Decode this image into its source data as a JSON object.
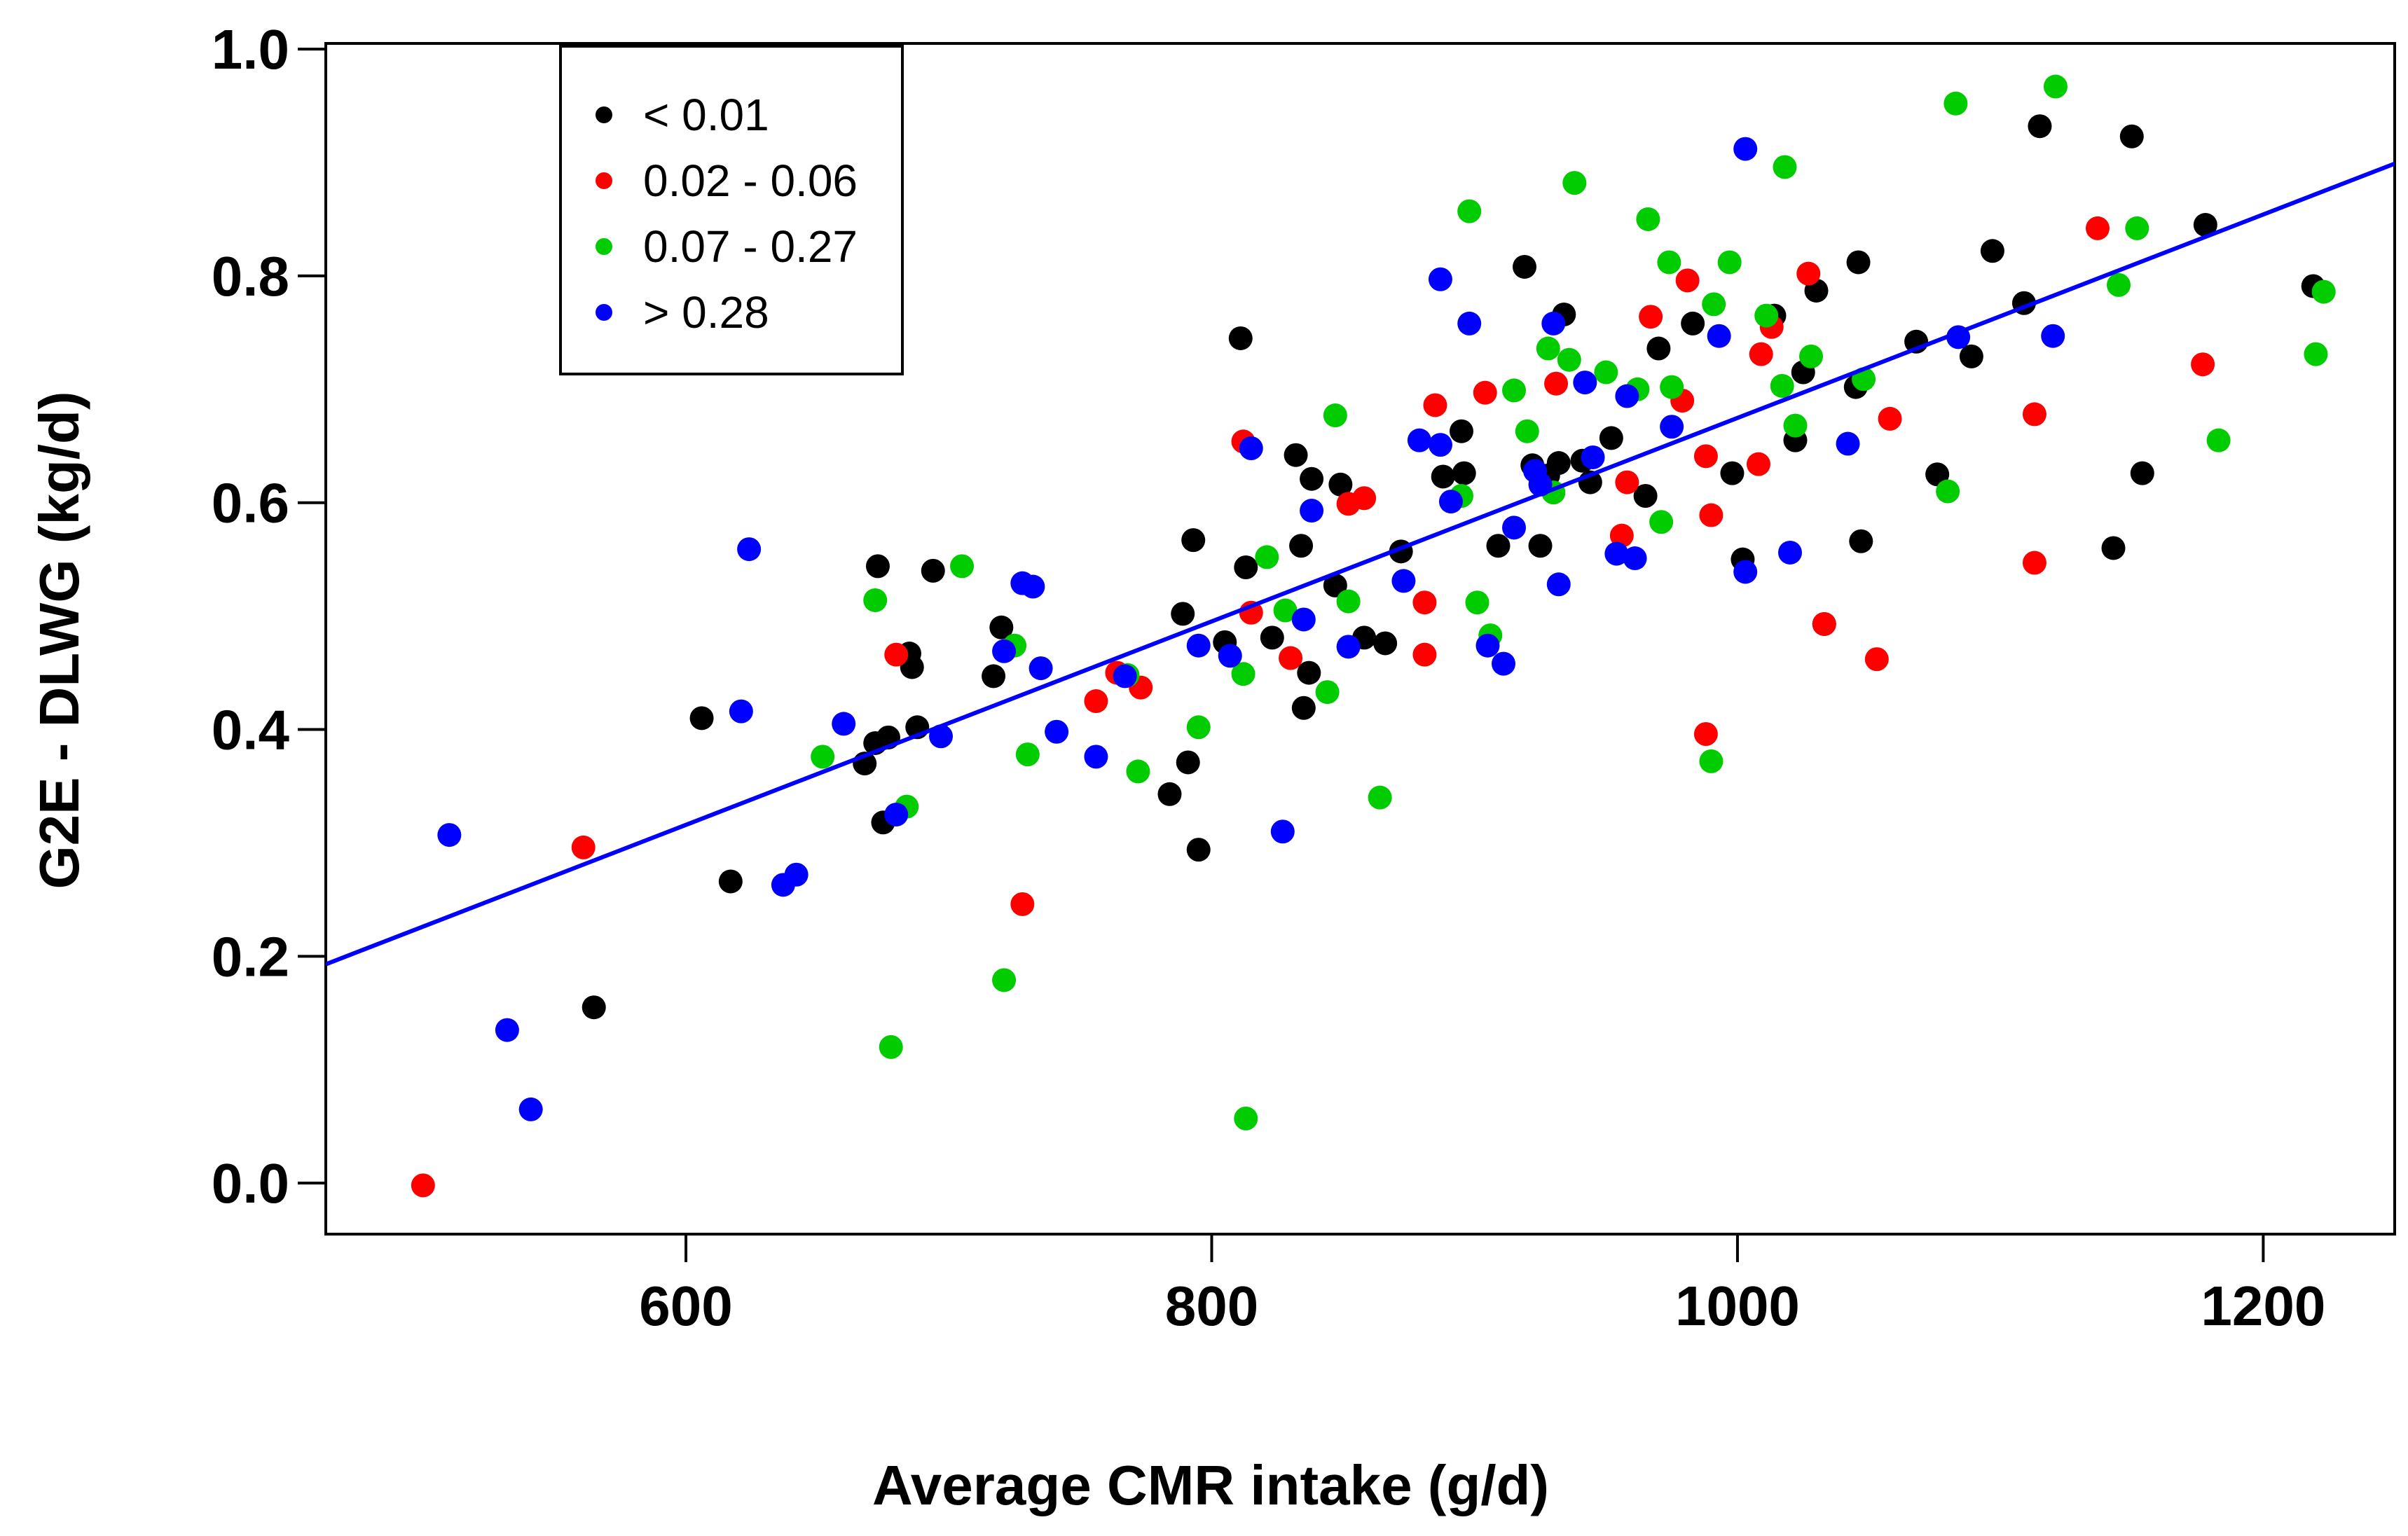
{
  "chart_data": {
    "type": "scatter",
    "title": "",
    "xlabel": "Average  CMR intake (g/d)",
    "ylabel": "G2E - DLWG (kg/d)",
    "xlim": [
      463,
      1250
    ],
    "ylim": [
      -0.045,
      1.005
    ],
    "xticks": [
      600,
      800,
      1000,
      1200
    ],
    "yticks": [
      0.0,
      0.2,
      0.4,
      0.6,
      0.8,
      1.0
    ],
    "xtick_labels": [
      "600",
      "800",
      "1000",
      "1200"
    ],
    "ytick_labels": [
      "0.0",
      "0.2",
      "0.4",
      "0.6",
      "0.8",
      "1.0"
    ],
    "grid": false,
    "legend_position": "top-left",
    "regression_line": {
      "color": "#0000ff",
      "x": [
        463,
        1250
      ],
      "y": [
        0.193,
        0.899
      ]
    },
    "series": [
      {
        "name": "< 0.01",
        "color": "#000000",
        "points": [
          [
            565,
            0.155
          ],
          [
            606,
            0.41
          ],
          [
            617,
            0.266
          ],
          [
            668,
            0.37
          ],
          [
            672,
            0.388
          ],
          [
            673,
            0.544
          ],
          [
            675,
            0.318
          ],
          [
            677,
            0.393
          ],
          [
            685,
            0.467
          ],
          [
            686,
            0.455
          ],
          [
            688,
            0.402
          ],
          [
            694,
            0.54
          ],
          [
            717,
            0.447
          ],
          [
            720,
            0.49
          ],
          [
            784,
            0.343
          ],
          [
            789,
            0.502
          ],
          [
            791,
            0.371
          ],
          [
            793,
            0.567
          ],
          [
            795,
            0.294
          ],
          [
            805,
            0.477
          ],
          [
            811,
            0.745
          ],
          [
            813,
            0.543
          ],
          [
            823,
            0.481
          ],
          [
            832,
            0.642
          ],
          [
            834,
            0.562
          ],
          [
            835,
            0.419
          ],
          [
            837,
            0.45
          ],
          [
            838,
            0.621
          ],
          [
            847,
            0.527
          ],
          [
            849,
            0.616
          ],
          [
            858,
            0.481
          ],
          [
            866,
            0.476
          ],
          [
            872,
            0.557
          ],
          [
            888,
            0.623
          ],
          [
            895,
            0.663
          ],
          [
            896,
            0.626
          ],
          [
            909,
            0.562
          ],
          [
            919,
            0.808
          ],
          [
            922,
            0.633
          ],
          [
            925,
            0.562
          ],
          [
            928,
            0.624
          ],
          [
            932,
            0.635
          ],
          [
            934,
            0.766
          ],
          [
            941,
            0.637
          ],
          [
            944,
            0.618
          ],
          [
            952,
            0.657
          ],
          [
            965,
            0.606
          ],
          [
            970,
            0.736
          ],
          [
            983,
            0.758
          ],
          [
            998,
            0.626
          ],
          [
            1002,
            0.55
          ],
          [
            1014,
            0.765
          ],
          [
            1022,
            0.655
          ],
          [
            1025,
            0.715
          ],
          [
            1030,
            0.787
          ],
          [
            1033,
            0.493
          ],
          [
            1045,
            0.702
          ],
          [
            1046,
            0.812
          ],
          [
            1047,
            0.566
          ],
          [
            1068,
            0.742
          ],
          [
            1076,
            0.625
          ],
          [
            1089,
            0.729
          ],
          [
            1097,
            0.822
          ],
          [
            1109,
            0.776
          ],
          [
            1115,
            0.932
          ],
          [
            1143,
            0.56
          ],
          [
            1150,
            0.923
          ],
          [
            1154,
            0.626
          ],
          [
            1178,
            0.845
          ],
          [
            1219,
            0.791
          ]
        ]
      },
      {
        "name": "0.02 - 0.06",
        "color": "#ff0000",
        "points": [
          [
            500,
            -0.002
          ],
          [
            561,
            0.296
          ],
          [
            680,
            0.466
          ],
          [
            728,
            0.246
          ],
          [
            756,
            0.425
          ],
          [
            764,
            0.45
          ],
          [
            773,
            0.437
          ],
          [
            812,
            0.654
          ],
          [
            815,
            0.503
          ],
          [
            830,
            0.463
          ],
          [
            852,
            0.599
          ],
          [
            858,
            0.604
          ],
          [
            881,
            0.512
          ],
          [
            885,
            0.686
          ],
          [
            881,
            0.466
          ],
          [
            904,
            0.697
          ],
          [
            931,
            0.705
          ],
          [
            956,
            0.571
          ],
          [
            958,
            0.618
          ],
          [
            967,
            0.764
          ],
          [
            979,
            0.69
          ],
          [
            981,
            0.796
          ],
          [
            988,
            0.641
          ],
          [
            990,
            0.589
          ],
          [
            988,
            0.396
          ],
          [
            1008,
            0.634
          ],
          [
            1009,
            0.731
          ],
          [
            1013,
            0.755
          ],
          [
            1027,
            0.802
          ],
          [
            1033,
            0.493
          ],
          [
            1053,
            0.462
          ],
          [
            1058,
            0.674
          ],
          [
            1113,
            0.678
          ],
          [
            1113,
            0.547
          ],
          [
            1137,
            0.842
          ],
          [
            1177,
            0.722
          ]
        ]
      },
      {
        "name": "0.07 - 0.27",
        "color": "#00cc00",
        "points": [
          [
            652,
            0.376
          ],
          [
            672,
            0.514
          ],
          [
            678,
            0.12
          ],
          [
            684,
            0.332
          ],
          [
            705,
            0.544
          ],
          [
            721,
            0.179
          ],
          [
            725,
            0.474
          ],
          [
            730,
            0.378
          ],
          [
            768,
            0.448
          ],
          [
            772,
            0.363
          ],
          [
            795,
            0.402
          ],
          [
            813,
            0.057
          ],
          [
            812,
            0.449
          ],
          [
            821,
            0.552
          ],
          [
            828,
            0.505
          ],
          [
            844,
            0.433
          ],
          [
            847,
            0.677
          ],
          [
            852,
            0.513
          ],
          [
            864,
            0.34
          ],
          [
            895,
            0.606
          ],
          [
            898,
            0.857
          ],
          [
            901,
            0.512
          ],
          [
            906,
            0.483
          ],
          [
            915,
            0.699
          ],
          [
            920,
            0.663
          ],
          [
            928,
            0.736
          ],
          [
            930,
            0.609
          ],
          [
            936,
            0.726
          ],
          [
            938,
            0.882
          ],
          [
            950,
            0.715
          ],
          [
            962,
            0.7
          ],
          [
            966,
            0.85
          ],
          [
            971,
            0.583
          ],
          [
            974,
            0.812
          ],
          [
            975,
            0.702
          ],
          [
            991,
            0.775
          ],
          [
            990,
            0.372
          ],
          [
            997,
            0.812
          ],
          [
            1011,
            0.765
          ],
          [
            1018,
            0.896
          ],
          [
            1017,
            0.703
          ],
          [
            1022,
            0.668
          ],
          [
            1028,
            0.729
          ],
          [
            1048,
            0.709
          ],
          [
            1080,
            0.61
          ],
          [
            1083,
            0.952
          ],
          [
            1121,
            0.967
          ],
          [
            1145,
            0.792
          ],
          [
            1152,
            0.842
          ],
          [
            1183,
            0.655
          ],
          [
            1220,
            0.731
          ],
          [
            1223,
            0.786
          ]
        ]
      },
      {
        "name": "> 0.28",
        "color": "#0000ff",
        "points": [
          [
            510,
            0.307
          ],
          [
            532,
            0.135
          ],
          [
            541,
            0.065
          ],
          [
            621,
            0.416
          ],
          [
            624,
            0.559
          ],
          [
            637,
            0.263
          ],
          [
            642,
            0.272
          ],
          [
            660,
            0.405
          ],
          [
            680,
            0.325
          ],
          [
            697,
            0.394
          ],
          [
            721,
            0.469
          ],
          [
            728,
            0.529
          ],
          [
            732,
            0.526
          ],
          [
            735,
            0.454
          ],
          [
            741,
            0.398
          ],
          [
            756,
            0.376
          ],
          [
            767,
            0.447
          ],
          [
            795,
            0.474
          ],
          [
            807,
            0.465
          ],
          [
            815,
            0.648
          ],
          [
            827,
            0.31
          ],
          [
            835,
            0.497
          ],
          [
            838,
            0.593
          ],
          [
            852,
            0.473
          ],
          [
            873,
            0.531
          ],
          [
            879,
            0.655
          ],
          [
            887,
            0.797
          ],
          [
            887,
            0.651
          ],
          [
            891,
            0.601
          ],
          [
            898,
            0.758
          ],
          [
            905,
            0.474
          ],
          [
            911,
            0.458
          ],
          [
            915,
            0.578
          ],
          [
            923,
            0.628
          ],
          [
            925,
            0.616
          ],
          [
            930,
            0.758
          ],
          [
            932,
            0.528
          ],
          [
            942,
            0.706
          ],
          [
            945,
            0.64
          ],
          [
            954,
            0.555
          ],
          [
            958,
            0.694
          ],
          [
            961,
            0.551
          ],
          [
            975,
            0.667
          ],
          [
            993,
            0.747
          ],
          [
            1003,
            0.912
          ],
          [
            1003,
            0.539
          ],
          [
            1020,
            0.556
          ],
          [
            1042,
            0.652
          ],
          [
            1084,
            0.746
          ],
          [
            1120,
            0.747
          ]
        ]
      }
    ]
  }
}
